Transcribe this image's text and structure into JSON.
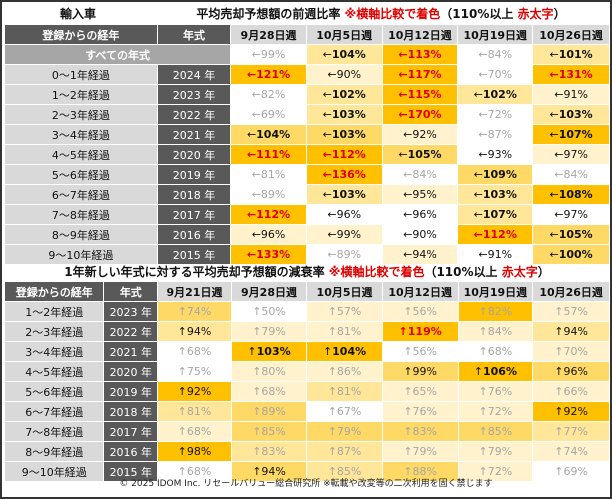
{
  "top": {
    "section_label": "輸入車",
    "title_main": "平均売却予想額の前週比率 ",
    "title_note_prefix": "※横軸比較で着色",
    "title_note_mid": "（110%以上 ",
    "title_note_red": "赤太字",
    "title_note_suffix": "）",
    "col_header_age": "登録からの経年",
    "col_header_year": "年式",
    "weeks": [
      "9月28日週",
      "10月5日週",
      "10月12日週",
      "10月19日週",
      "10月26日週"
    ],
    "all_row_label": "すべての年式",
    "all_row": [
      {
        "arrow": "←",
        "value": "99%",
        "style": "faint",
        "color": "c0"
      },
      {
        "arrow": "←",
        "value": "104%",
        "style": "bold",
        "color": "c2"
      },
      {
        "arrow": "←",
        "value": "113%",
        "style": "red",
        "color": "c4"
      },
      {
        "arrow": "←",
        "value": "84%",
        "style": "faint",
        "color": "c0"
      },
      {
        "arrow": "←",
        "value": "101%",
        "style": "bold",
        "color": "c2"
      }
    ],
    "rows": [
      {
        "age": "0～1年経過",
        "year": "2024 年",
        "cells": [
          {
            "arrow": "←",
            "value": "121%",
            "style": "red",
            "color": "c4"
          },
          {
            "arrow": "←",
            "value": "90%",
            "style": "normal",
            "color": "c1"
          },
          {
            "arrow": "←",
            "value": "117%",
            "style": "red",
            "color": "c4"
          },
          {
            "arrow": "←",
            "value": "70%",
            "style": "faint",
            "color": "c0"
          },
          {
            "arrow": "←",
            "value": "131%",
            "style": "red",
            "color": "c4"
          }
        ]
      },
      {
        "age": "1～2年経過",
        "year": "2023 年",
        "cells": [
          {
            "arrow": "←",
            "value": "82%",
            "style": "faint",
            "color": "c0"
          },
          {
            "arrow": "←",
            "value": "102%",
            "style": "bold",
            "color": "c2"
          },
          {
            "arrow": "←",
            "value": "115%",
            "style": "red",
            "color": "c4"
          },
          {
            "arrow": "←",
            "value": "102%",
            "style": "bold",
            "color": "c2"
          },
          {
            "arrow": "←",
            "value": "91%",
            "style": "normal",
            "color": "c1"
          }
        ]
      },
      {
        "age": "2～3年経過",
        "year": "2022 年",
        "cells": [
          {
            "arrow": "←",
            "value": "69%",
            "style": "faint",
            "color": "c0"
          },
          {
            "arrow": "←",
            "value": "103%",
            "style": "bold",
            "color": "c2"
          },
          {
            "arrow": "←",
            "value": "170%",
            "style": "red",
            "color": "c4"
          },
          {
            "arrow": "←",
            "value": "72%",
            "style": "faint",
            "color": "c0"
          },
          {
            "arrow": "←",
            "value": "103%",
            "style": "bold",
            "color": "c2"
          }
        ]
      },
      {
        "age": "3～4年経過",
        "year": "2021 年",
        "cells": [
          {
            "arrow": "←",
            "value": "104%",
            "style": "bold",
            "color": "c3"
          },
          {
            "arrow": "←",
            "value": "103%",
            "style": "bold",
            "color": "c3"
          },
          {
            "arrow": "←",
            "value": "92%",
            "style": "normal",
            "color": "c1"
          },
          {
            "arrow": "←",
            "value": "87%",
            "style": "faint",
            "color": "c0"
          },
          {
            "arrow": "←",
            "value": "107%",
            "style": "bold",
            "color": "c4"
          }
        ]
      },
      {
        "age": "4～5年経過",
        "year": "2020 年",
        "cells": [
          {
            "arrow": "←",
            "value": "111%",
            "style": "red",
            "color": "c4"
          },
          {
            "arrow": "←",
            "value": "112%",
            "style": "red",
            "color": "c4"
          },
          {
            "arrow": "←",
            "value": "105%",
            "style": "bold",
            "color": "c3"
          },
          {
            "arrow": "←",
            "value": "93%",
            "style": "normal",
            "color": "c0"
          },
          {
            "arrow": "←",
            "value": "97%",
            "style": "normal",
            "color": "c1"
          }
        ]
      },
      {
        "age": "5～6年経過",
        "year": "2019 年",
        "cells": [
          {
            "arrow": "←",
            "value": "81%",
            "style": "faint",
            "color": "c0"
          },
          {
            "arrow": "←",
            "value": "136%",
            "style": "red",
            "color": "c4"
          },
          {
            "arrow": "←",
            "value": "84%",
            "style": "faint",
            "color": "c0"
          },
          {
            "arrow": "←",
            "value": "109%",
            "style": "bold",
            "color": "c3"
          },
          {
            "arrow": "←",
            "value": "84%",
            "style": "faint",
            "color": "c0"
          }
        ]
      },
      {
        "age": "6～7年経過",
        "year": "2018 年",
        "cells": [
          {
            "arrow": "←",
            "value": "89%",
            "style": "faint",
            "color": "c0"
          },
          {
            "arrow": "←",
            "value": "103%",
            "style": "bold",
            "color": "c2"
          },
          {
            "arrow": "←",
            "value": "95%",
            "style": "normal",
            "color": "c1"
          },
          {
            "arrow": "←",
            "value": "103%",
            "style": "bold",
            "color": "c2"
          },
          {
            "arrow": "←",
            "value": "108%",
            "style": "bold",
            "color": "c4"
          }
        ]
      },
      {
        "age": "7～8年経過",
        "year": "2017 年",
        "cells": [
          {
            "arrow": "←",
            "value": "112%",
            "style": "red",
            "color": "c4"
          },
          {
            "arrow": "←",
            "value": "96%",
            "style": "normal",
            "color": "c0"
          },
          {
            "arrow": "←",
            "value": "96%",
            "style": "normal",
            "color": "c0"
          },
          {
            "arrow": "←",
            "value": "107%",
            "style": "bold",
            "color": "c2"
          },
          {
            "arrow": "←",
            "value": "97%",
            "style": "normal",
            "color": "c0"
          }
        ]
      },
      {
        "age": "8～9年経過",
        "year": "2016 年",
        "cells": [
          {
            "arrow": "←",
            "value": "96%",
            "style": "normal",
            "color": "c1"
          },
          {
            "arrow": "←",
            "value": "99%",
            "style": "normal",
            "color": "c1"
          },
          {
            "arrow": "←",
            "value": "90%",
            "style": "normal",
            "color": "c0"
          },
          {
            "arrow": "←",
            "value": "112%",
            "style": "red",
            "color": "c4"
          },
          {
            "arrow": "←",
            "value": "105%",
            "style": "bold",
            "color": "c3"
          }
        ]
      },
      {
        "age": "9～10年経過",
        "year": "2015 年",
        "cells": [
          {
            "arrow": "←",
            "value": "133%",
            "style": "red",
            "color": "c4"
          },
          {
            "arrow": "←",
            "value": "89%",
            "style": "faint",
            "color": "c0"
          },
          {
            "arrow": "←",
            "value": "94%",
            "style": "normal",
            "color": "c1"
          },
          {
            "arrow": "←",
            "value": "91%",
            "style": "normal",
            "color": "c0"
          },
          {
            "arrow": "←",
            "value": "100%",
            "style": "bold",
            "color": "c3"
          }
        ]
      }
    ]
  },
  "bottom": {
    "title_main": "1年新しい年式に対する平均売却予想額の減衰率 ",
    "title_note_prefix": "※横軸比較で着色",
    "title_note_mid": "（110%以上 ",
    "title_note_red": "赤太字",
    "title_note_suffix": "）",
    "col_header_age": "登録からの経年",
    "col_header_year": "年式",
    "weeks": [
      "9月21日週",
      "9月28日週",
      "10月5日週",
      "10月12日週",
      "10月19日週",
      "10月26日週"
    ],
    "rows": [
      {
        "age": "1～2年経過",
        "year": "2023 年",
        "cells": [
          {
            "arrow": "↑",
            "value": "74%",
            "style": "faint",
            "color": "c3"
          },
          {
            "arrow": "↑",
            "value": "50%",
            "style": "faint",
            "color": "c0"
          },
          {
            "arrow": "↑",
            "value": "57%",
            "style": "faint",
            "color": "c1"
          },
          {
            "arrow": "↑",
            "value": "56%",
            "style": "faint",
            "color": "c1"
          },
          {
            "arrow": "↑",
            "value": "82%",
            "style": "faint",
            "color": "c4"
          },
          {
            "arrow": "↑",
            "value": "57%",
            "style": "faint",
            "color": "c1"
          }
        ]
      },
      {
        "age": "2～3年経過",
        "year": "2022 年",
        "cells": [
          {
            "arrow": "↑",
            "value": "94%",
            "style": "normal",
            "color": "c2"
          },
          {
            "arrow": "↑",
            "value": "79%",
            "style": "faint",
            "color": "c1"
          },
          {
            "arrow": "↑",
            "value": "81%",
            "style": "faint",
            "color": "c1"
          },
          {
            "arrow": "↑",
            "value": "119%",
            "style": "red",
            "color": "c4"
          },
          {
            "arrow": "↑",
            "value": "84%",
            "style": "faint",
            "color": "c1"
          },
          {
            "arrow": "↑",
            "value": "94%",
            "style": "normal",
            "color": "c2"
          }
        ]
      },
      {
        "age": "3～4年経過",
        "year": "2021 年",
        "cells": [
          {
            "arrow": "↑",
            "value": "68%",
            "style": "faint",
            "color": "c0"
          },
          {
            "arrow": "↑",
            "value": "103%",
            "style": "bold",
            "color": "c4"
          },
          {
            "arrow": "↑",
            "value": "104%",
            "style": "bold",
            "color": "c4"
          },
          {
            "arrow": "↑",
            "value": "56%",
            "style": "faint",
            "color": "c0"
          },
          {
            "arrow": "↑",
            "value": "68%",
            "style": "faint",
            "color": "c0"
          },
          {
            "arrow": "↑",
            "value": "70%",
            "style": "faint",
            "color": "c1"
          }
        ]
      },
      {
        "age": "4～5年経過",
        "year": "2020 年",
        "cells": [
          {
            "arrow": "↑",
            "value": "75%",
            "style": "faint",
            "color": "c0"
          },
          {
            "arrow": "↑",
            "value": "80%",
            "style": "faint",
            "color": "c1"
          },
          {
            "arrow": "↑",
            "value": "86%",
            "style": "faint",
            "color": "c1"
          },
          {
            "arrow": "↑",
            "value": "99%",
            "style": "normal",
            "color": "c3"
          },
          {
            "arrow": "↑",
            "value": "106%",
            "style": "bold",
            "color": "c4"
          },
          {
            "arrow": "↑",
            "value": "96%",
            "style": "normal",
            "color": "c3"
          }
        ]
      },
      {
        "age": "5～6年経過",
        "year": "2019 年",
        "cells": [
          {
            "arrow": "↑",
            "value": "92%",
            "style": "normal",
            "color": "c4"
          },
          {
            "arrow": "↑",
            "value": "68%",
            "style": "faint",
            "color": "c1"
          },
          {
            "arrow": "↑",
            "value": "81%",
            "style": "faint",
            "color": "c2"
          },
          {
            "arrow": "↑",
            "value": "65%",
            "style": "faint",
            "color": "c1"
          },
          {
            "arrow": "↑",
            "value": "76%",
            "style": "faint",
            "color": "c1"
          },
          {
            "arrow": "↑",
            "value": "66%",
            "style": "faint",
            "color": "c1"
          }
        ]
      },
      {
        "age": "6～7年経過",
        "year": "2018 年",
        "cells": [
          {
            "arrow": "↑",
            "value": "81%",
            "style": "faint",
            "color": "c2"
          },
          {
            "arrow": "↑",
            "value": "89%",
            "style": "faint",
            "color": "c3"
          },
          {
            "arrow": "↑",
            "value": "67%",
            "style": "faint",
            "color": "c0"
          },
          {
            "arrow": "↑",
            "value": "76%",
            "style": "faint",
            "color": "c1"
          },
          {
            "arrow": "↑",
            "value": "72%",
            "style": "faint",
            "color": "c1"
          },
          {
            "arrow": "↑",
            "value": "92%",
            "style": "normal",
            "color": "c4"
          }
        ]
      },
      {
        "age": "7～8年経過",
        "year": "2017 年",
        "cells": [
          {
            "arrow": "↑",
            "value": "68%",
            "style": "faint",
            "color": "c1"
          },
          {
            "arrow": "↑",
            "value": "85%",
            "style": "faint",
            "color": "c3"
          },
          {
            "arrow": "↑",
            "value": "79%",
            "style": "faint",
            "color": "c3"
          },
          {
            "arrow": "↑",
            "value": "83%",
            "style": "faint",
            "color": "c3"
          },
          {
            "arrow": "↑",
            "value": "85%",
            "style": "faint",
            "color": "c3"
          },
          {
            "arrow": "↑",
            "value": "77%",
            "style": "faint",
            "color": "c2"
          }
        ]
      },
      {
        "age": "8～9年経過",
        "year": "2016 年",
        "cells": [
          {
            "arrow": "↑",
            "value": "98%",
            "style": "normal",
            "color": "c4"
          },
          {
            "arrow": "↑",
            "value": "83%",
            "style": "faint",
            "color": "c2"
          },
          {
            "arrow": "↑",
            "value": "87%",
            "style": "faint",
            "color": "c2"
          },
          {
            "arrow": "↑",
            "value": "79%",
            "style": "faint",
            "color": "c1"
          },
          {
            "arrow": "↑",
            "value": "79%",
            "style": "faint",
            "color": "c1"
          },
          {
            "arrow": "↑",
            "value": "74%",
            "style": "faint",
            "color": "c1"
          }
        ]
      },
      {
        "age": "9～10年経過",
        "year": "2015 年",
        "cells": [
          {
            "arrow": "↑",
            "value": "68%",
            "style": "faint",
            "color": "c0"
          },
          {
            "arrow": "↑",
            "value": "94%",
            "style": "normal",
            "color": "c3"
          },
          {
            "arrow": "↑",
            "value": "85%",
            "style": "faint",
            "color": "c2"
          },
          {
            "arrow": "↑",
            "value": "88%",
            "style": "faint",
            "color": "c3"
          },
          {
            "arrow": "↑",
            "value": "72%",
            "style": "faint",
            "color": "c1"
          },
          {
            "arrow": "↑",
            "value": "69%",
            "style": "faint",
            "color": "c0"
          }
        ]
      }
    ]
  },
  "footer": "© 2025 IDOM Inc. リセールバリュー総合研究所 ※転載や改変等の二次利用を固く禁じます",
  "colors": {
    "dark_header": "#595959",
    "light_header": "#d9d9d9",
    "all_row": "#a6a6a6",
    "red": "#e00000",
    "heat_1": "#fff2cc",
    "heat_2": "#ffe699",
    "heat_3": "#ffd966",
    "heat_4": "#ffc000"
  }
}
